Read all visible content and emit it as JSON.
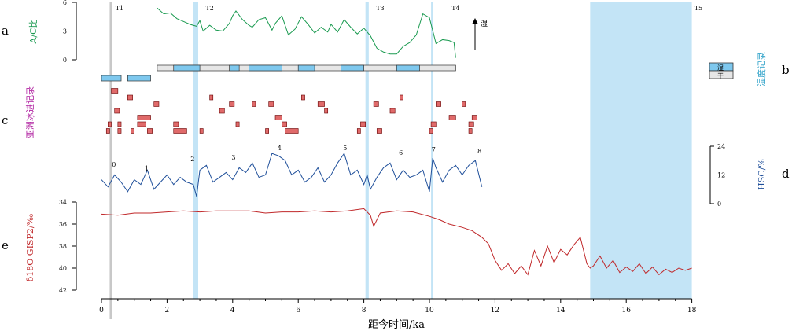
{
  "panels": {
    "a": {
      "letter": "a",
      "ylabel": "A/C比",
      "ticks": [
        "6",
        "3",
        "0"
      ],
      "arrow_label": "湿"
    },
    "b": {
      "letter": "b",
      "ylabel": "湿度记录",
      "legend": [
        "湿",
        "干"
      ]
    },
    "c": {
      "letter": "c",
      "ylabel": "亚洲冰进记录"
    },
    "d": {
      "letter": "d",
      "ylabel": "HSC/%",
      "ticks": [
        "24",
        "12",
        "0"
      ]
    },
    "e": {
      "letter": "e",
      "ylabel": "δ18O GISP2/‰",
      "ticks": [
        "34",
        "36",
        "38",
        "40",
        "42"
      ]
    }
  },
  "events": [
    "T1",
    "T2",
    "T3",
    "T4",
    "T5"
  ],
  "cycle_labels": [
    "0",
    "1",
    "2",
    "3",
    "4",
    "5",
    "6",
    "7",
    "8"
  ],
  "xaxis": {
    "label": "距今时间/ka",
    "ticks": [
      "0",
      "2",
      "4",
      "6",
      "8",
      "10",
      "12",
      "14",
      "16",
      "18"
    ]
  },
  "colors": {
    "ac": "#1a9a50",
    "hsc": "#1f4f9a",
    "d18o": "#c0282a",
    "glacier": "#e06a6a",
    "humid": "#7ec8ee",
    "band": "#c3e4f6",
    "gray_band": "#c8c8c8"
  },
  "chart_data": [
    {
      "type": "line",
      "name": "a",
      "ylabel": "A/C比",
      "ylim": [
        0,
        6
      ],
      "x": [
        1.7,
        1.9,
        2.1,
        2.3,
        2.5,
        2.7,
        2.9,
        3.0,
        3.1,
        3.3,
        3.5,
        3.7,
        3.9,
        4.0,
        4.1,
        4.3,
        4.5,
        4.6,
        4.8,
        5.0,
        5.2,
        5.3,
        5.5,
        5.7,
        5.9,
        6.1,
        6.3,
        6.5,
        6.7,
        6.9,
        7.0,
        7.2,
        7.4,
        7.6,
        7.8,
        8.0,
        8.2,
        8.4,
        8.6,
        8.8,
        9.0,
        9.2,
        9.4,
        9.6,
        9.8,
        10.0,
        10.2,
        10.4,
        10.6,
        10.75,
        10.8
      ],
      "values": [
        5.4,
        4.8,
        4.9,
        4.3,
        4.0,
        3.7,
        3.5,
        4.1,
        3.0,
        3.6,
        3.1,
        3.0,
        3.8,
        4.6,
        5.1,
        4.2,
        3.6,
        3.4,
        4.2,
        4.4,
        3.1,
        3.8,
        4.6,
        2.6,
        3.2,
        4.5,
        3.7,
        2.8,
        3.4,
        2.9,
        3.7,
        2.9,
        4.2,
        3.4,
        2.7,
        3.3,
        2.5,
        1.2,
        0.8,
        0.6,
        0.6,
        1.4,
        1.8,
        2.6,
        4.8,
        4.4,
        1.7,
        2.1,
        2.0,
        1.8,
        0.2
      ]
    },
    {
      "type": "bar",
      "name": "b",
      "ylabel": "湿度记录",
      "humid_intervals": [
        [
          0,
          0.6
        ],
        [
          0.8,
          1.5
        ],
        [
          2.2,
          2.7
        ],
        [
          2.7,
          3.0
        ],
        [
          3.9,
          4.2
        ],
        [
          4.5,
          5.5
        ],
        [
          6.0,
          6.5
        ],
        [
          7.3,
          8.0
        ],
        [
          9.0,
          9.7
        ]
      ],
      "dry_span": [
        1.7,
        10.8
      ]
    },
    {
      "type": "bar",
      "name": "c",
      "ylabel": "亚洲冰进记录",
      "events": [
        [
          0.3,
          0.5,
          1
        ],
        [
          0.8,
          0.95,
          2
        ],
        [
          1.6,
          1.75,
          3
        ],
        [
          3.3,
          3.4,
          2
        ],
        [
          3.9,
          4.05,
          3
        ],
        [
          4.6,
          4.7,
          3
        ],
        [
          5.1,
          5.25,
          3
        ],
        [
          6.1,
          6.2,
          2
        ],
        [
          6.6,
          6.8,
          3
        ],
        [
          8.3,
          8.45,
          3
        ],
        [
          9.1,
          9.2,
          2
        ],
        [
          10.2,
          10.35,
          3
        ],
        [
          11.0,
          11.1,
          3
        ],
        [
          0.4,
          0.55,
          4
        ],
        [
          1.1,
          1.5,
          5
        ],
        [
          3.6,
          3.75,
          4
        ],
        [
          5.3,
          5.5,
          5
        ],
        [
          6.8,
          6.9,
          4
        ],
        [
          8.8,
          8.95,
          4
        ],
        [
          10.6,
          10.8,
          5
        ],
        [
          11.3,
          11.45,
          5
        ],
        [
          0.2,
          0.3,
          6
        ],
        [
          0.5,
          0.6,
          6
        ],
        [
          1.1,
          1.35,
          6
        ],
        [
          2.2,
          2.35,
          6
        ],
        [
          4.1,
          4.2,
          6
        ],
        [
          5.5,
          5.65,
          6
        ],
        [
          7.9,
          8.05,
          6
        ],
        [
          10.05,
          10.2,
          6
        ],
        [
          11.2,
          11.35,
          6
        ],
        [
          0.15,
          0.25,
          7
        ],
        [
          0.5,
          0.6,
          7
        ],
        [
          0.9,
          1.0,
          7
        ],
        [
          1.4,
          1.55,
          7
        ],
        [
          2.2,
          2.6,
          7
        ],
        [
          3.0,
          3.1,
          7
        ],
        [
          5.0,
          5.1,
          7
        ],
        [
          5.6,
          6.0,
          7
        ],
        [
          7.8,
          7.9,
          7
        ],
        [
          8.4,
          8.55,
          7
        ],
        [
          10.0,
          10.1,
          7
        ],
        [
          11.2,
          11.3,
          7
        ]
      ]
    },
    {
      "type": "line",
      "name": "d",
      "ylabel": "HSC/%",
      "ylim": [
        0,
        24
      ],
      "x": [
        0,
        0.2,
        0.4,
        0.6,
        0.8,
        1.0,
        1.2,
        1.4,
        1.6,
        1.8,
        2.0,
        2.2,
        2.4,
        2.6,
        2.8,
        2.9,
        3.0,
        3.2,
        3.4,
        3.6,
        3.8,
        4.0,
        4.2,
        4.4,
        4.6,
        4.8,
        5.0,
        5.2,
        5.4,
        5.6,
        5.8,
        6.0,
        6.2,
        6.4,
        6.6,
        6.8,
        7.0,
        7.2,
        7.4,
        7.6,
        7.8,
        8.0,
        8.1,
        8.2,
        8.4,
        8.6,
        8.8,
        9.0,
        9.2,
        9.4,
        9.6,
        9.8,
        10.0,
        10.1,
        10.2,
        10.4,
        10.6,
        10.8,
        11.0,
        11.2,
        11.4,
        11.6
      ],
      "values": [
        10,
        7,
        12,
        9,
        5,
        10,
        8,
        14,
        6,
        9,
        12,
        8,
        11,
        9,
        8,
        3,
        14,
        16,
        9,
        11,
        13,
        10,
        15,
        13,
        17,
        11,
        12,
        21,
        20,
        18,
        12,
        14,
        9,
        11,
        15,
        9,
        12,
        17,
        21,
        12,
        14,
        8,
        12,
        6,
        11,
        15,
        17,
        10,
        14,
        11,
        12,
        14,
        5,
        19,
        15,
        9,
        14,
        16,
        12,
        16,
        18,
        7
      ]
    },
    {
      "type": "line",
      "name": "e",
      "ylabel": "δ18O GISP2/‰",
      "ylim": [
        34,
        42
      ],
      "x": [
        0,
        0.5,
        1,
        1.5,
        2,
        2.5,
        3,
        3.5,
        4,
        4.5,
        5,
        5.5,
        6,
        6.5,
        7,
        7.5,
        8,
        8.2,
        8.3,
        8.5,
        9,
        9.5,
        10,
        10.3,
        10.6,
        11,
        11.3,
        11.6,
        11.8,
        12,
        12.2,
        12.4,
        12.6,
        12.8,
        13,
        13.2,
        13.4,
        13.6,
        13.8,
        14,
        14.2,
        14.4,
        14.6,
        14.8,
        14.9,
        15,
        15.2,
        15.4,
        15.6,
        15.8,
        16,
        16.2,
        16.4,
        16.6,
        16.8,
        17,
        17.2,
        17.4,
        17.6,
        17.8,
        18
      ],
      "values": [
        35.1,
        35.2,
        35.0,
        35.0,
        34.9,
        34.8,
        34.9,
        34.8,
        34.8,
        34.8,
        35.0,
        34.9,
        34.9,
        34.8,
        34.9,
        34.8,
        34.6,
        35.2,
        36.2,
        35.0,
        34.8,
        34.9,
        35.3,
        35.6,
        36.0,
        36.3,
        36.6,
        37.2,
        37.8,
        39.3,
        40.2,
        39.6,
        40.5,
        39.8,
        40.6,
        38.4,
        39.8,
        38.0,
        39.5,
        38.3,
        38.8,
        37.9,
        37.2,
        39.6,
        40.0,
        39.8,
        38.9,
        40.0,
        39.3,
        40.4,
        39.9,
        40.3,
        39.6,
        40.5,
        39.9,
        40.6,
        40.1,
        40.4,
        40.0,
        40.2,
        40.0
      ]
    }
  ]
}
